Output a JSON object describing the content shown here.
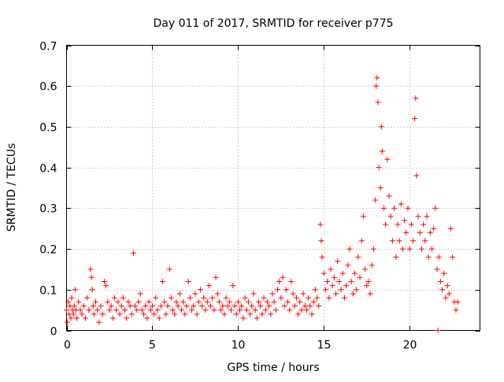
{
  "chart_data": {
    "type": "scatter",
    "title": "Day 011 of 2017, SRMTID for receiver p775",
    "xlabel": "GPS time / hours",
    "ylabel": "SRMTID / TECUs",
    "xlim": [
      0,
      24.1
    ],
    "ylim": [
      0,
      0.7
    ],
    "x_ticks": [
      0,
      5,
      10,
      15,
      20
    ],
    "x_tick_labels": [
      "0",
      "5",
      "10",
      "15",
      "20"
    ],
    "y_ticks": [
      0,
      0.1,
      0.2,
      0.3,
      0.4,
      0.5,
      0.6,
      0.7
    ],
    "y_tick_labels": [
      "0",
      "0.1",
      "0.2",
      "0.3",
      "0.4",
      "0.5",
      "0.6",
      "0.7"
    ],
    "grid": true,
    "marker": "+",
    "series_color": "#ff0000",
    "series": [
      {
        "name": "SRMTID",
        "points": [
          [
            0.0,
            0.05
          ],
          [
            0.05,
            0.02
          ],
          [
            0.1,
            0.07
          ],
          [
            0.15,
            0.04
          ],
          [
            0.2,
            0.06
          ],
          [
            0.25,
            0.03
          ],
          [
            0.3,
            0.08
          ],
          [
            0.35,
            0.05
          ],
          [
            0.4,
            0.04
          ],
          [
            0.45,
            0.06
          ],
          [
            0.5,
            0.1
          ],
          [
            0.55,
            0.05
          ],
          [
            0.6,
            0.03
          ],
          [
            0.7,
            0.07
          ],
          [
            0.8,
            0.05
          ],
          [
            0.9,
            0.04
          ],
          [
            1.0,
            0.06
          ],
          [
            1.1,
            0.03
          ],
          [
            1.2,
            0.08
          ],
          [
            1.3,
            0.05
          ],
          [
            1.4,
            0.15
          ],
          [
            1.45,
            0.13
          ],
          [
            1.5,
            0.1
          ],
          [
            1.55,
            0.06
          ],
          [
            1.6,
            0.04
          ],
          [
            1.7,
            0.07
          ],
          [
            1.8,
            0.05
          ],
          [
            1.9,
            0.02
          ],
          [
            2.0,
            0.06
          ],
          [
            2.1,
            0.04
          ],
          [
            2.2,
            0.12
          ],
          [
            2.3,
            0.11
          ],
          [
            2.4,
            0.07
          ],
          [
            2.5,
            0.05
          ],
          [
            2.6,
            0.06
          ],
          [
            2.7,
            0.03
          ],
          [
            2.8,
            0.08
          ],
          [
            2.9,
            0.05
          ],
          [
            3.0,
            0.07
          ],
          [
            3.1,
            0.04
          ],
          [
            3.2,
            0.06
          ],
          [
            3.3,
            0.08
          ],
          [
            3.4,
            0.05
          ],
          [
            3.5,
            0.03
          ],
          [
            3.6,
            0.07
          ],
          [
            3.7,
            0.06
          ],
          [
            3.8,
            0.04
          ],
          [
            3.9,
            0.19
          ],
          [
            4.0,
            0.06
          ],
          [
            4.1,
            0.05
          ],
          [
            4.2,
            0.07
          ],
          [
            4.3,
            0.09
          ],
          [
            4.4,
            0.05
          ],
          [
            4.5,
            0.04
          ],
          [
            4.6,
            0.06
          ],
          [
            4.7,
            0.03
          ],
          [
            4.8,
            0.07
          ],
          [
            4.9,
            0.05
          ],
          [
            5.0,
            0.06
          ],
          [
            5.1,
            0.04
          ],
          [
            5.2,
            0.08
          ],
          [
            5.3,
            0.05
          ],
          [
            5.4,
            0.03
          ],
          [
            5.5,
            0.06
          ],
          [
            5.6,
            0.12
          ],
          [
            5.7,
            0.07
          ],
          [
            5.8,
            0.04
          ],
          [
            5.9,
            0.06
          ],
          [
            6.0,
            0.15
          ],
          [
            6.1,
            0.08
          ],
          [
            6.2,
            0.05
          ],
          [
            6.3,
            0.04
          ],
          [
            6.4,
            0.07
          ],
          [
            6.5,
            0.06
          ],
          [
            6.6,
            0.09
          ],
          [
            6.7,
            0.05
          ],
          [
            6.8,
            0.07
          ],
          [
            6.9,
            0.04
          ],
          [
            7.0,
            0.06
          ],
          [
            7.1,
            0.12
          ],
          [
            7.2,
            0.08
          ],
          [
            7.3,
            0.05
          ],
          [
            7.4,
            0.06
          ],
          [
            7.5,
            0.09
          ],
          [
            7.6,
            0.04
          ],
          [
            7.7,
            0.07
          ],
          [
            7.8,
            0.1
          ],
          [
            7.9,
            0.06
          ],
          [
            8.0,
            0.08
          ],
          [
            8.1,
            0.05
          ],
          [
            8.2,
            0.07
          ],
          [
            8.3,
            0.11
          ],
          [
            8.4,
            0.06
          ],
          [
            8.5,
            0.08
          ],
          [
            8.6,
            0.05
          ],
          [
            8.7,
            0.13
          ],
          [
            8.8,
            0.09
          ],
          [
            8.9,
            0.07
          ],
          [
            9.0,
            0.05
          ],
          [
            9.1,
            0.06
          ],
          [
            9.2,
            0.04
          ],
          [
            9.3,
            0.08
          ],
          [
            9.4,
            0.06
          ],
          [
            9.5,
            0.07
          ],
          [
            9.6,
            0.05
          ],
          [
            9.7,
            0.11
          ],
          [
            9.8,
            0.06
          ],
          [
            9.9,
            0.04
          ],
          [
            10.0,
            0.07
          ],
          [
            10.1,
            0.05
          ],
          [
            10.2,
            0.06
          ],
          [
            10.3,
            0.03
          ],
          [
            10.4,
            0.08
          ],
          [
            10.5,
            0.05
          ],
          [
            10.6,
            0.07
          ],
          [
            10.7,
            0.04
          ],
          [
            10.8,
            0.06
          ],
          [
            10.9,
            0.09
          ],
          [
            11.0,
            0.05
          ],
          [
            11.1,
            0.03
          ],
          [
            11.2,
            0.07
          ],
          [
            11.3,
            0.06
          ],
          [
            11.4,
            0.04
          ],
          [
            11.5,
            0.08
          ],
          [
            11.6,
            0.05
          ],
          [
            11.7,
            0.07
          ],
          [
            11.8,
            0.06
          ],
          [
            11.9,
            0.04
          ],
          [
            12.0,
            0.09
          ],
          [
            12.1,
            0.07
          ],
          [
            12.2,
            0.05
          ],
          [
            12.3,
            0.1
          ],
          [
            12.4,
            0.12
          ],
          [
            12.5,
            0.08
          ],
          [
            12.6,
            0.13
          ],
          [
            12.7,
            0.06
          ],
          [
            12.8,
            0.1
          ],
          [
            12.9,
            0.07
          ],
          [
            13.0,
            0.05
          ],
          [
            13.1,
            0.12
          ],
          [
            13.2,
            0.09
          ],
          [
            13.3,
            0.06
          ],
          [
            13.4,
            0.08
          ],
          [
            13.5,
            0.04
          ],
          [
            13.6,
            0.07
          ],
          [
            13.7,
            0.05
          ],
          [
            13.8,
            0.09
          ],
          [
            13.9,
            0.06
          ],
          [
            14.0,
            0.05
          ],
          [
            14.1,
            0.08
          ],
          [
            14.2,
            0.06
          ],
          [
            14.3,
            0.04
          ],
          [
            14.4,
            0.07
          ],
          [
            14.5,
            0.1
          ],
          [
            14.6,
            0.08
          ],
          [
            14.7,
            0.06
          ],
          [
            14.8,
            0.26
          ],
          [
            14.85,
            0.22
          ],
          [
            14.9,
            0.18
          ],
          [
            15.0,
            0.14
          ],
          [
            15.1,
            0.1
          ],
          [
            15.2,
            0.12
          ],
          [
            15.3,
            0.08
          ],
          [
            15.4,
            0.15
          ],
          [
            15.5,
            0.11
          ],
          [
            15.6,
            0.13
          ],
          [
            15.7,
            0.09
          ],
          [
            15.8,
            0.17
          ],
          [
            15.9,
            0.12
          ],
          [
            16.0,
            0.1
          ],
          [
            16.1,
            0.14
          ],
          [
            16.2,
            0.08
          ],
          [
            16.3,
            0.11
          ],
          [
            16.4,
            0.16
          ],
          [
            16.5,
            0.2
          ],
          [
            16.6,
            0.12
          ],
          [
            16.7,
            0.09
          ],
          [
            16.8,
            0.14
          ],
          [
            16.9,
            0.1
          ],
          [
            17.0,
            0.18
          ],
          [
            17.1,
            0.13
          ],
          [
            17.2,
            0.22
          ],
          [
            17.3,
            0.28
          ],
          [
            17.4,
            0.15
          ],
          [
            17.5,
            0.11
          ],
          [
            17.6,
            0.12
          ],
          [
            17.7,
            0.09
          ],
          [
            17.8,
            0.16
          ],
          [
            17.9,
            0.2
          ],
          [
            18.0,
            0.32
          ],
          [
            18.05,
            0.6
          ],
          [
            18.1,
            0.62
          ],
          [
            18.15,
            0.56
          ],
          [
            18.2,
            0.4
          ],
          [
            18.3,
            0.35
          ],
          [
            18.35,
            0.5
          ],
          [
            18.4,
            0.44
          ],
          [
            18.5,
            0.3
          ],
          [
            18.6,
            0.26
          ],
          [
            18.7,
            0.42
          ],
          [
            18.8,
            0.33
          ],
          [
            18.9,
            0.28
          ],
          [
            19.0,
            0.22
          ],
          [
            19.1,
            0.3
          ],
          [
            19.2,
            0.18
          ],
          [
            19.3,
            0.26
          ],
          [
            19.4,
            0.22
          ],
          [
            19.5,
            0.31
          ],
          [
            19.6,
            0.2
          ],
          [
            19.7,
            0.27
          ],
          [
            19.8,
            0.24
          ],
          [
            19.9,
            0.3
          ],
          [
            20.0,
            0.2
          ],
          [
            20.1,
            0.26
          ],
          [
            20.2,
            0.22
          ],
          [
            20.3,
            0.52
          ],
          [
            20.35,
            0.57
          ],
          [
            20.4,
            0.38
          ],
          [
            20.5,
            0.28
          ],
          [
            20.6,
            0.24
          ],
          [
            20.7,
            0.2
          ],
          [
            20.8,
            0.26
          ],
          [
            20.9,
            0.22
          ],
          [
            21.0,
            0.28
          ],
          [
            21.1,
            0.18
          ],
          [
            21.2,
            0.24
          ],
          [
            21.3,
            0.2
          ],
          [
            21.4,
            0.25
          ],
          [
            21.5,
            0.3
          ],
          [
            21.6,
            0.15
          ],
          [
            21.7,
            0.18
          ],
          [
            21.8,
            0.12
          ],
          [
            21.9,
            0.1
          ],
          [
            22.0,
            0.14
          ],
          [
            22.1,
            0.08
          ],
          [
            22.2,
            0.11
          ],
          [
            22.3,
            0.09
          ],
          [
            22.4,
            0.25
          ],
          [
            22.5,
            0.18
          ],
          [
            22.6,
            0.07
          ],
          [
            22.7,
            0.05
          ],
          [
            22.8,
            0.07
          ],
          [
            21.65,
            0.0
          ]
        ]
      }
    ]
  }
}
